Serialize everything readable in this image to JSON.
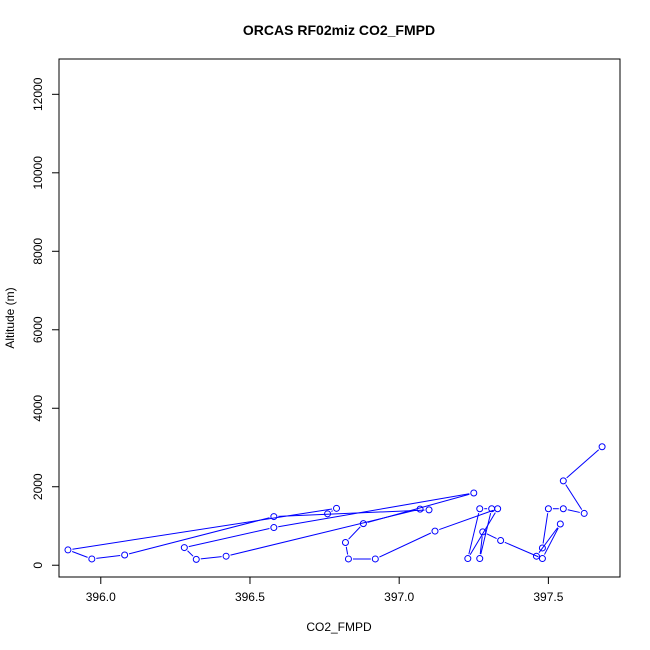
{
  "chart_data": {
    "type": "line",
    "title": "ORCAS RF02miz CO2_FMPD",
    "xlabel": "CO2_FMPD",
    "ylabel": "Altitude (m)",
    "xlim": [
      395.86,
      397.74
    ],
    "ylim": [
      -300,
      12900
    ],
    "x_ticks": [
      "396.0",
      "396.5",
      "397.0",
      "397.5"
    ],
    "x_tick_values": [
      396.0,
      396.5,
      397.0,
      397.5
    ],
    "y_ticks": [
      "0",
      "2000",
      "4000",
      "6000",
      "8000",
      "10000",
      "12000"
    ],
    "y_tick_values": [
      0,
      2000,
      4000,
      6000,
      8000,
      10000,
      12000
    ],
    "grid": false,
    "series_color": "#0000ff",
    "markers": "open-circle",
    "series": [
      {
        "x": [
          397.68,
          397.55,
          397.62,
          397.55,
          397.5,
          397.48,
          397.46,
          397.54,
          397.48,
          397.34,
          397.28,
          397.27,
          397.31,
          397.27,
          397.23,
          397.33,
          397.12,
          396.92,
          396.83,
          396.82,
          396.88,
          397.25,
          396.58,
          396.28,
          396.32,
          396.42,
          397.07,
          397.1,
          396.58,
          396.08,
          395.97,
          395.89,
          396.79,
          396.76
        ],
        "y": [
          3020,
          2150,
          1320,
          1440,
          1440,
          440,
          230,
          1050,
          170,
          630,
          850,
          170,
          1440,
          1440,
          170,
          1440,
          870,
          160,
          160,
          580,
          1060,
          1840,
          960,
          450,
          150,
          230,
          1430,
          1410,
          1240,
          260,
          160,
          390,
          1450,
          1310
        ]
      }
    ]
  }
}
